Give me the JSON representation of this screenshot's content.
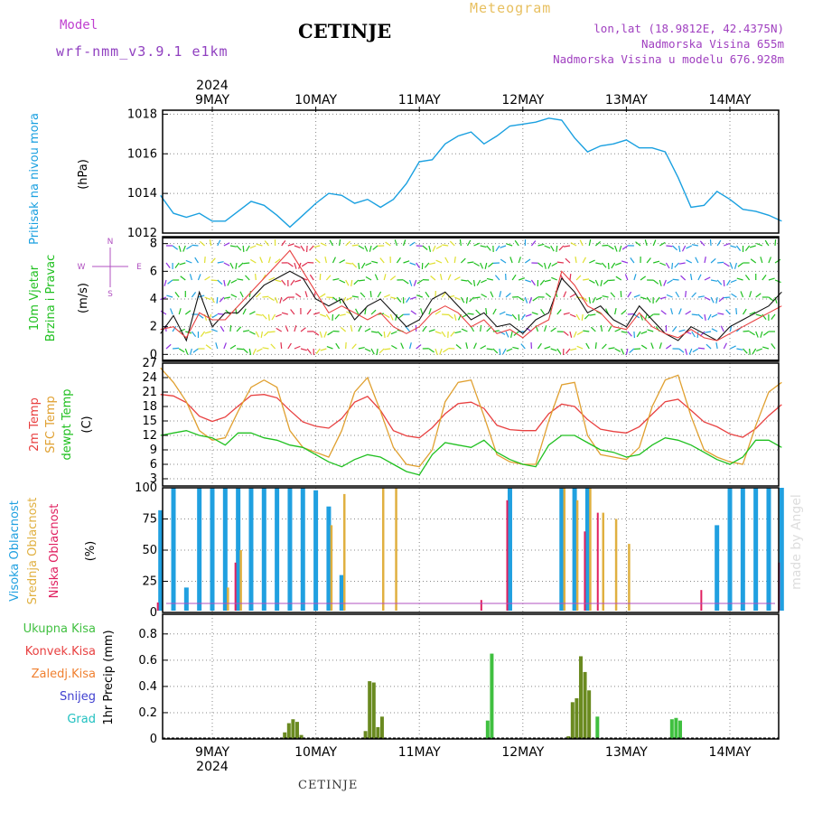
{
  "header": {
    "model_label": "Model",
    "model_name": "wrf-nmm_v3.9.1 e1km",
    "city": "CETINJE",
    "meteogram": "Meteogram",
    "lonlat": "lon,lat (18.9812E, 42.4375N)",
    "altitude": "Nadmorska Visina 655m",
    "model_altitude": "Nadmorska Visina u modelu 676.928m"
  },
  "footer": {
    "city": "CETINJE",
    "watermark": "made by Angel"
  },
  "days": [
    "9MAY",
    "10MAY",
    "11MAY",
    "12MAY",
    "13MAY",
    "14MAY"
  ],
  "year": "2024",
  "colors": {
    "pressure": "#1aa0e0",
    "temp2m": "#e84040",
    "sfc": "#e0a030",
    "dew": "#20c020",
    "high": "#20a0e0",
    "mid": "#e0b040",
    "low": "#e02060",
    "precip": "#6a8a20",
    "convective": "#40c040"
  },
  "panels": {
    "pressure": {
      "label": "Pritisak na nivou mora",
      "unit": "(hPa)"
    },
    "wind": {
      "label1": "10m Vjetar",
      "label2": "Brzina i Pravac",
      "unit": "(m/s)",
      "compass": {
        "n": "N",
        "s": "S",
        "w": "W",
        "e": "E"
      }
    },
    "temp": {
      "label1": "2m Temp",
      "label2": "SFC Temp",
      "label3": "dewpt Temp",
      "unit": "(C)"
    },
    "cloud": {
      "label1": "Visoka Oblacnost",
      "label2": "Srednja Oblacnost",
      "label3": "Niska Oblacnost",
      "unit": "(%)"
    },
    "precip": {
      "label1": "Ukupna Kisa",
      "label2": "Konvek.Kisa",
      "label3": "Zaledj.Kisa",
      "label4": "Snijeg",
      "label5": "Grad",
      "unit": "1hr Precip (mm)"
    }
  },
  "chart_data": [
    {
      "type": "line",
      "name": "pressure",
      "ylim": [
        1012,
        1018.2
      ],
      "yticks": [
        1012,
        1014,
        1016,
        1018
      ],
      "x_start": "2024-05-08T12",
      "x_step_hours": 3,
      "values": [
        1013.9,
        1013.0,
        1012.8,
        1013.0,
        1012.6,
        1012.6,
        1013.1,
        1013.6,
        1013.4,
        1012.9,
        1012.3,
        1012.9,
        1013.5,
        1014.0,
        1013.9,
        1013.5,
        1013.7,
        1013.3,
        1013.7,
        1014.5,
        1015.6,
        1015.7,
        1016.5,
        1016.9,
        1017.1,
        1016.5,
        1016.9,
        1017.4,
        1017.5,
        1017.6,
        1017.8,
        1017.7,
        1016.8,
        1016.1,
        1016.4,
        1016.5,
        1016.7,
        1016.3,
        1016.3,
        1016.1,
        1014.8,
        1013.3,
        1013.4,
        1014.1,
        1013.7,
        1013.2,
        1013.1,
        1012.9,
        1012.6
      ]
    },
    {
      "type": "line",
      "name": "wind",
      "ylim": [
        -0.5,
        8.5
      ],
      "yticks": [
        0,
        2,
        4,
        6,
        8
      ],
      "x_start": "2024-05-08T12",
      "x_step_hours": 3,
      "series": [
        {
          "values": [
            1.5,
            2.8,
            1.0,
            4.5,
            2.0,
            3.0,
            3.0,
            4.0,
            5.0,
            5.5,
            6.0,
            5.5,
            4.0,
            3.5,
            4.0,
            2.5,
            3.5,
            4.0,
            3.0,
            2.0,
            2.5,
            4.0,
            4.5,
            3.5,
            2.5,
            3.0,
            2.0,
            2.2,
            1.5,
            2.5,
            3.0,
            5.5,
            4.5,
            3.0,
            3.5,
            2.5,
            2.0,
            3.5,
            2.5,
            1.5,
            1.0,
            2.0,
            1.5,
            1.0,
            2.0,
            2.5,
            3.0,
            3.5,
            4.5
          ]
        },
        {
          "values": [
            1.8,
            2.0,
            1.2,
            3.0,
            2.5,
            2.5,
            3.5,
            4.5,
            5.5,
            6.5,
            7.5,
            6.0,
            4.5,
            3.0,
            3.5,
            3.0,
            2.5,
            3.0,
            2.0,
            1.5,
            2.0,
            3.0,
            3.5,
            3.0,
            2.0,
            2.5,
            1.5,
            1.8,
            1.2,
            2.0,
            2.5,
            6.0,
            5.0,
            3.5,
            3.0,
            2.0,
            1.8,
            3.0,
            2.0,
            1.5,
            1.2,
            1.8,
            1.2,
            1.0,
            1.5,
            2.0,
            2.5,
            3.0,
            3.5
          ]
        }
      ]
    },
    {
      "type": "line",
      "name": "temperature",
      "ylim": [
        1.5,
        27
      ],
      "yticks": [
        3,
        6,
        9,
        12,
        15,
        18,
        21,
        24,
        27
      ],
      "x_start": "2024-05-08T12",
      "x_step_hours": 3,
      "series": [
        {
          "values": [
            20.5,
            20.2,
            18.8,
            16.0,
            14.9,
            15.8,
            18.1,
            20.3,
            20.5,
            19.8,
            17.2,
            14.8,
            13.9,
            13.5,
            15.5,
            18.9,
            20.1,
            17.2,
            13.0,
            11.9,
            11.5,
            13.6,
            16.5,
            18.6,
            18.9,
            17.6,
            14.1,
            13.2,
            13.0,
            13.0,
            16.5,
            18.5,
            18.0,
            15.3,
            13.3,
            12.8,
            12.5,
            13.8,
            16.4,
            19.0,
            19.5,
            17.2,
            14.8,
            13.8,
            12.3,
            11.6,
            13.4,
            16.1,
            18.4
          ]
        },
        {
          "values": [
            26.0,
            23.0,
            19.0,
            13.0,
            11.0,
            11.5,
            17.0,
            22.0,
            23.5,
            22.0,
            13.0,
            9.5,
            8.5,
            7.5,
            13.0,
            21.0,
            24.0,
            17.0,
            9.5,
            6.0,
            5.5,
            9.0,
            19.0,
            23.0,
            23.5,
            16.0,
            8.0,
            6.5,
            6.0,
            6.0,
            15.0,
            22.5,
            23.0,
            12.0,
            8.0,
            7.5,
            7.0,
            9.5,
            18.0,
            23.5,
            24.5,
            16.0,
            9.0,
            7.5,
            6.5,
            6.0,
            14.0,
            21.0,
            23.0
          ]
        },
        {
          "values": [
            12.0,
            12.5,
            13.0,
            12.0,
            11.5,
            10.0,
            12.5,
            12.5,
            11.5,
            11.0,
            10.0,
            9.5,
            8.0,
            6.5,
            5.5,
            7.0,
            8.0,
            7.5,
            6.0,
            4.5,
            3.8,
            8.0,
            10.5,
            10.0,
            9.5,
            11.0,
            8.5,
            7.0,
            6.0,
            5.5,
            10.0,
            12.0,
            12.0,
            10.5,
            9.0,
            8.5,
            7.5,
            8.0,
            10.0,
            11.5,
            11.0,
            10.0,
            8.5,
            7.0,
            6.0,
            7.5,
            11.0,
            11.0,
            9.5
          ]
        }
      ]
    },
    {
      "type": "bar",
      "name": "cloud cover",
      "ylim": [
        0,
        100
      ],
      "yticks": [
        0,
        25,
        50,
        75,
        100
      ],
      "x_start": "2024-05-08T12",
      "x_step_hours": 3,
      "series": [
        {
          "values": [
            82,
            100,
            20,
            100,
            100,
            100,
            100,
            100,
            100,
            100,
            100,
            100,
            98,
            85,
            30,
            0,
            0,
            0,
            0,
            0,
            0,
            0,
            0,
            0,
            0,
            0,
            0,
            100,
            0,
            0,
            0,
            100,
            100,
            100,
            0,
            0,
            0,
            0,
            0,
            0,
            0,
            0,
            0,
            70,
            100,
            100,
            100,
            100,
            100
          ]
        },
        {
          "values": [
            0,
            0,
            0,
            0,
            0,
            20,
            50,
            0,
            0,
            0,
            0,
            0,
            0,
            70,
            95,
            0,
            0,
            100,
            100,
            0,
            0,
            0,
            0,
            0,
            0,
            0,
            0,
            0,
            0,
            0,
            0,
            100,
            90,
            100,
            80,
            75,
            55,
            0,
            0,
            0,
            0,
            0,
            0,
            0,
            0,
            0,
            0,
            0,
            0
          ]
        },
        {
          "values": [
            8,
            0,
            0,
            0,
            0,
            0,
            40,
            0,
            0,
            0,
            0,
            0,
            0,
            0,
            0,
            0,
            0,
            0,
            0,
            0,
            0,
            0,
            0,
            0,
            0,
            10,
            0,
            90,
            0,
            0,
            0,
            0,
            0,
            65,
            80,
            0,
            0,
            0,
            0,
            0,
            0,
            0,
            18,
            0,
            0,
            0,
            0,
            0,
            40
          ]
        }
      ]
    },
    {
      "type": "bar",
      "name": "precipitation",
      "ylim": [
        0,
        0.95
      ],
      "yticks": [
        0,
        0.2,
        0.4,
        0.6,
        0.8
      ],
      "bars": [
        {
          "day": 0.7,
          "v": 0.05
        },
        {
          "day": 0.74,
          "v": 0.12
        },
        {
          "day": 0.78,
          "v": 0.15
        },
        {
          "day": 0.82,
          "v": 0.13
        },
        {
          "day": 0.86,
          "v": 0.03
        },
        {
          "day": 1.48,
          "v": 0.06
        },
        {
          "day": 1.52,
          "v": 0.44
        },
        {
          "day": 1.56,
          "v": 0.43
        },
        {
          "day": 1.6,
          "v": 0.09
        },
        {
          "day": 1.64,
          "v": 0.17
        },
        {
          "day": 2.66,
          "v": 0.14
        },
        {
          "day": 2.7,
          "v": 0.65
        },
        {
          "day": 3.44,
          "v": 0.02
        },
        {
          "day": 3.48,
          "v": 0.28
        },
        {
          "day": 3.52,
          "v": 0.31
        },
        {
          "day": 3.56,
          "v": 0.63
        },
        {
          "day": 3.6,
          "v": 0.51
        },
        {
          "day": 3.64,
          "v": 0.37
        },
        {
          "day": 3.72,
          "v": 0.17
        },
        {
          "day": 4.44,
          "v": 0.15
        },
        {
          "day": 4.48,
          "v": 0.16
        },
        {
          "day": 4.52,
          "v": 0.14
        }
      ]
    }
  ]
}
